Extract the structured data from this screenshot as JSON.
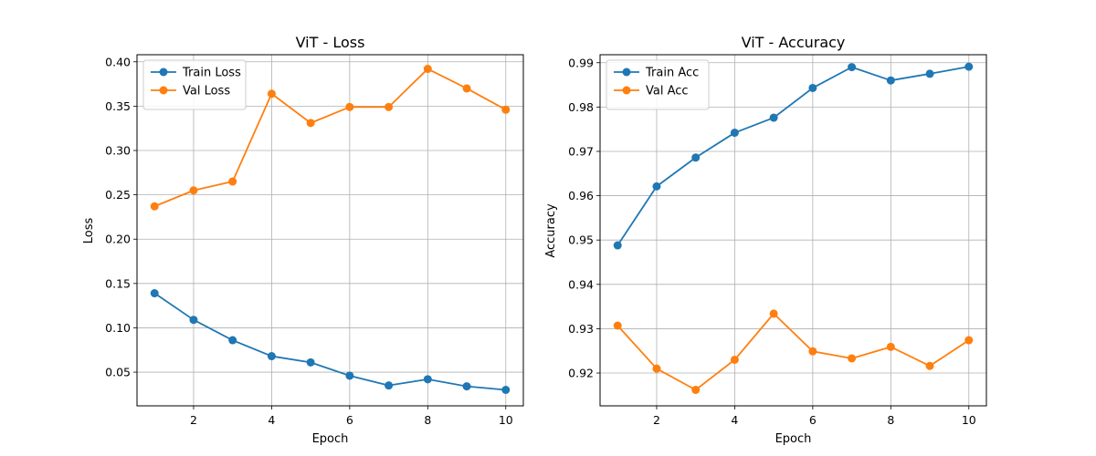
{
  "chart_data": [
    {
      "type": "line",
      "title": "ViT - Loss",
      "xlabel": "Epoch",
      "ylabel": "Loss",
      "x": [
        1,
        2,
        3,
        4,
        5,
        6,
        7,
        8,
        9,
        10
      ],
      "xlim": [
        0.55,
        10.45
      ],
      "ylim": [
        0.012,
        0.408
      ],
      "xticks": [
        2,
        4,
        6,
        8,
        10
      ],
      "xtick_labels": [
        "2",
        "4",
        "6",
        "8",
        "10"
      ],
      "yticks": [
        0.05,
        0.1,
        0.15,
        0.2,
        0.25,
        0.3,
        0.35,
        0.4
      ],
      "ytick_labels": [
        "0.05",
        "0.10",
        "0.15",
        "0.20",
        "0.25",
        "0.30",
        "0.35",
        "0.40"
      ],
      "grid": true,
      "legend_position": "top-left",
      "series": [
        {
          "name": "Train Loss",
          "color": "#1f77b4",
          "values": [
            0.139,
            0.109,
            0.086,
            0.068,
            0.061,
            0.046,
            0.035,
            0.042,
            0.034,
            0.03
          ]
        },
        {
          "name": "Val Loss",
          "color": "#ff7f0e",
          "values": [
            0.237,
            0.255,
            0.265,
            0.364,
            0.331,
            0.349,
            0.349,
            0.392,
            0.37,
            0.346
          ]
        }
      ]
    },
    {
      "type": "line",
      "title": "ViT - Accuracy",
      "xlabel": "Epoch",
      "ylabel": "Accuracy",
      "x": [
        1,
        2,
        3,
        4,
        5,
        6,
        7,
        8,
        9,
        10
      ],
      "xlim": [
        0.55,
        10.45
      ],
      "ylim": [
        0.9126,
        0.9918
      ],
      "xticks": [
        2,
        4,
        6,
        8,
        10
      ],
      "xtick_labels": [
        "2",
        "4",
        "6",
        "8",
        "10"
      ],
      "yticks": [
        0.92,
        0.93,
        0.94,
        0.95,
        0.96,
        0.97,
        0.98,
        0.99
      ],
      "ytick_labels": [
        "0.92",
        "0.93",
        "0.94",
        "0.95",
        "0.96",
        "0.97",
        "0.98",
        "0.99"
      ],
      "grid": true,
      "legend_position": "top-left",
      "series": [
        {
          "name": "Train Acc",
          "color": "#1f77b4",
          "values": [
            0.9488,
            0.9621,
            0.9686,
            0.9742,
            0.9776,
            0.9843,
            0.989,
            0.986,
            0.9875,
            0.9891
          ]
        },
        {
          "name": "Val Acc",
          "color": "#ff7f0e",
          "values": [
            0.9307,
            0.921,
            0.9162,
            0.923,
            0.9334,
            0.9249,
            0.9233,
            0.9259,
            0.9216,
            0.9274
          ]
        }
      ]
    }
  ]
}
